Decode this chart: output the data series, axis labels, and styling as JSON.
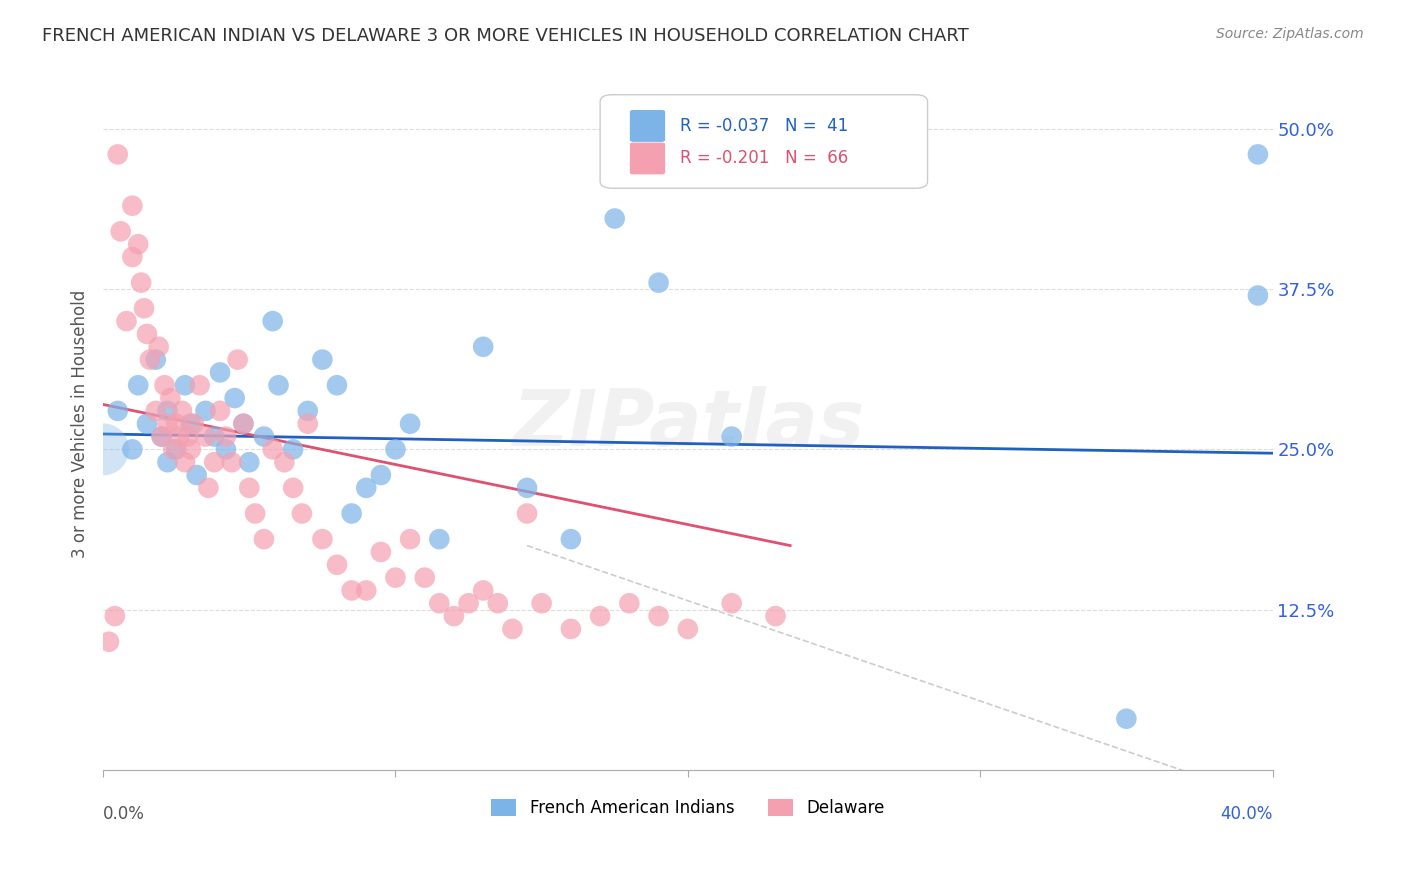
{
  "title": "FRENCH AMERICAN INDIAN VS DELAWARE 3 OR MORE VEHICLES IN HOUSEHOLD CORRELATION CHART",
  "source": "Source: ZipAtlas.com",
  "ylabel": "3 or more Vehicles in Household",
  "ytick_labels": [
    "50.0%",
    "37.5%",
    "25.0%",
    "12.5%"
  ],
  "ytick_values": [
    0.5,
    0.375,
    0.25,
    0.125
  ],
  "xlim": [
    0.0,
    0.4
  ],
  "ylim": [
    0.0,
    0.54
  ],
  "legend_blue_label": "French American Indians",
  "legend_pink_label": "Delaware",
  "legend_blue_R": "R = -0.037",
  "legend_blue_N": "N =  41",
  "legend_pink_R": "R = -0.201",
  "legend_pink_N": "N =  66",
  "blue_scatter_x": [
    0.005,
    0.01,
    0.012,
    0.015,
    0.018,
    0.02,
    0.022,
    0.022,
    0.025,
    0.028,
    0.03,
    0.032,
    0.035,
    0.038,
    0.04,
    0.042,
    0.045,
    0.048,
    0.05,
    0.055,
    0.058,
    0.06,
    0.065,
    0.07,
    0.075,
    0.08,
    0.085,
    0.09,
    0.095,
    0.1,
    0.105,
    0.115,
    0.13,
    0.145,
    0.16,
    0.175,
    0.19,
    0.215,
    0.35,
    0.395,
    0.395
  ],
  "blue_scatter_y": [
    0.28,
    0.25,
    0.3,
    0.27,
    0.32,
    0.26,
    0.24,
    0.28,
    0.25,
    0.3,
    0.27,
    0.23,
    0.28,
    0.26,
    0.31,
    0.25,
    0.29,
    0.27,
    0.24,
    0.26,
    0.35,
    0.3,
    0.25,
    0.28,
    0.32,
    0.3,
    0.2,
    0.22,
    0.23,
    0.25,
    0.27,
    0.18,
    0.33,
    0.22,
    0.18,
    0.43,
    0.38,
    0.26,
    0.04,
    0.37,
    0.48
  ],
  "pink_scatter_x": [
    0.002,
    0.004,
    0.005,
    0.006,
    0.008,
    0.01,
    0.01,
    0.012,
    0.013,
    0.014,
    0.015,
    0.016,
    0.018,
    0.019,
    0.02,
    0.021,
    0.022,
    0.023,
    0.024,
    0.025,
    0.026,
    0.027,
    0.028,
    0.029,
    0.03,
    0.031,
    0.033,
    0.035,
    0.036,
    0.038,
    0.04,
    0.042,
    0.044,
    0.046,
    0.048,
    0.05,
    0.052,
    0.055,
    0.058,
    0.062,
    0.065,
    0.068,
    0.07,
    0.075,
    0.08,
    0.085,
    0.09,
    0.095,
    0.1,
    0.105,
    0.11,
    0.115,
    0.12,
    0.125,
    0.13,
    0.135,
    0.14,
    0.145,
    0.15,
    0.16,
    0.17,
    0.18,
    0.19,
    0.2,
    0.215,
    0.23
  ],
  "pink_scatter_y": [
    0.1,
    0.12,
    0.48,
    0.42,
    0.35,
    0.44,
    0.4,
    0.41,
    0.38,
    0.36,
    0.34,
    0.32,
    0.28,
    0.33,
    0.26,
    0.3,
    0.27,
    0.29,
    0.25,
    0.27,
    0.26,
    0.28,
    0.24,
    0.26,
    0.25,
    0.27,
    0.3,
    0.26,
    0.22,
    0.24,
    0.28,
    0.26,
    0.24,
    0.32,
    0.27,
    0.22,
    0.2,
    0.18,
    0.25,
    0.24,
    0.22,
    0.2,
    0.27,
    0.18,
    0.16,
    0.14,
    0.14,
    0.17,
    0.15,
    0.18,
    0.15,
    0.13,
    0.12,
    0.13,
    0.14,
    0.13,
    0.11,
    0.2,
    0.13,
    0.11,
    0.12,
    0.13,
    0.12,
    0.11,
    0.13,
    0.12
  ],
  "blue_line_x": [
    0.0,
    0.4
  ],
  "blue_line_y": [
    0.262,
    0.247
  ],
  "pink_line_x": [
    0.0,
    0.235
  ],
  "pink_line_y": [
    0.285,
    0.175
  ],
  "dashed_line_x": [
    0.145,
    0.42
  ],
  "dashed_line_y": [
    0.175,
    -0.04
  ],
  "grid_color": "#dddddd",
  "blue_color": "#7cb4e8",
  "pink_color": "#f4a0b0",
  "blue_line_color": "#2060c0",
  "pink_line_color": "#e05070",
  "dashed_line_color": "#cccccc",
  "background_color": "#ffffff",
  "watermark": "ZIPatlas"
}
